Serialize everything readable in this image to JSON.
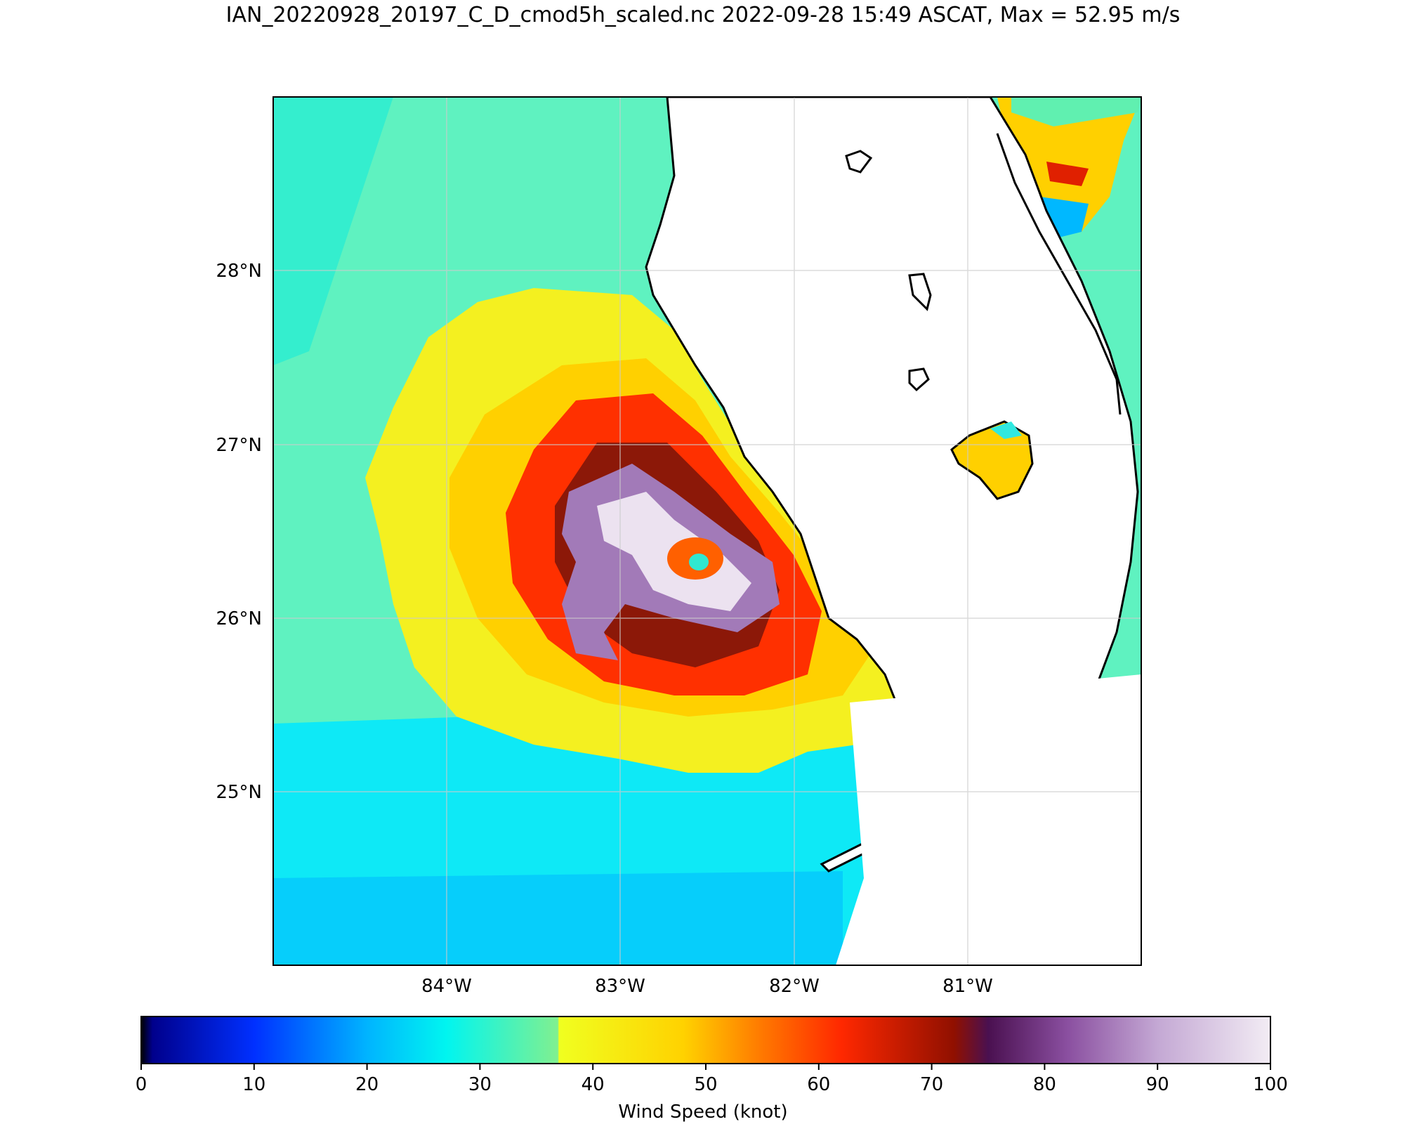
{
  "title": "IAN_20220928_20197_C_D_cmod5h_scaled.nc 2022-09-28 15:49 ASCAT, Max = 52.95 m/s",
  "map": {
    "lat_labels": [
      "28°N",
      "27°N",
      "26°N",
      "25°N"
    ],
    "lon_labels": [
      "84°W",
      "83°W",
      "82°W",
      "81°W"
    ],
    "extent": {
      "lon_min": -85.0,
      "lon_max": -80.0,
      "lat_min": 24.0,
      "lat_max": 29.0
    },
    "storm_center": {
      "lon": -82.6,
      "lat": 26.35
    },
    "max_wind_ms": 52.95
  },
  "colorbar": {
    "label": "Wind Speed (knot)",
    "ticks": [
      "0",
      "10",
      "20",
      "30",
      "40",
      "50",
      "60",
      "70",
      "80",
      "90",
      "100"
    ],
    "min": 0,
    "max": 100,
    "stops": [
      {
        "v": 0,
        "c": "#000000"
      },
      {
        "v": 1,
        "c": "#00008c"
      },
      {
        "v": 10,
        "c": "#0030ff"
      },
      {
        "v": 20,
        "c": "#00b4ff"
      },
      {
        "v": 27,
        "c": "#00f5f0"
      },
      {
        "v": 36.9,
        "c": "#80f090"
      },
      {
        "v": 37,
        "c": "#f0ff20"
      },
      {
        "v": 48,
        "c": "#ffd200"
      },
      {
        "v": 55,
        "c": "#ff7800"
      },
      {
        "v": 62,
        "c": "#ff2800"
      },
      {
        "v": 72,
        "c": "#901000"
      },
      {
        "v": 75,
        "c": "#4a1050"
      },
      {
        "v": 82,
        "c": "#8a4fa0"
      },
      {
        "v": 90,
        "c": "#c4a8d4"
      },
      {
        "v": 100,
        "c": "#f2ecf4"
      }
    ]
  }
}
